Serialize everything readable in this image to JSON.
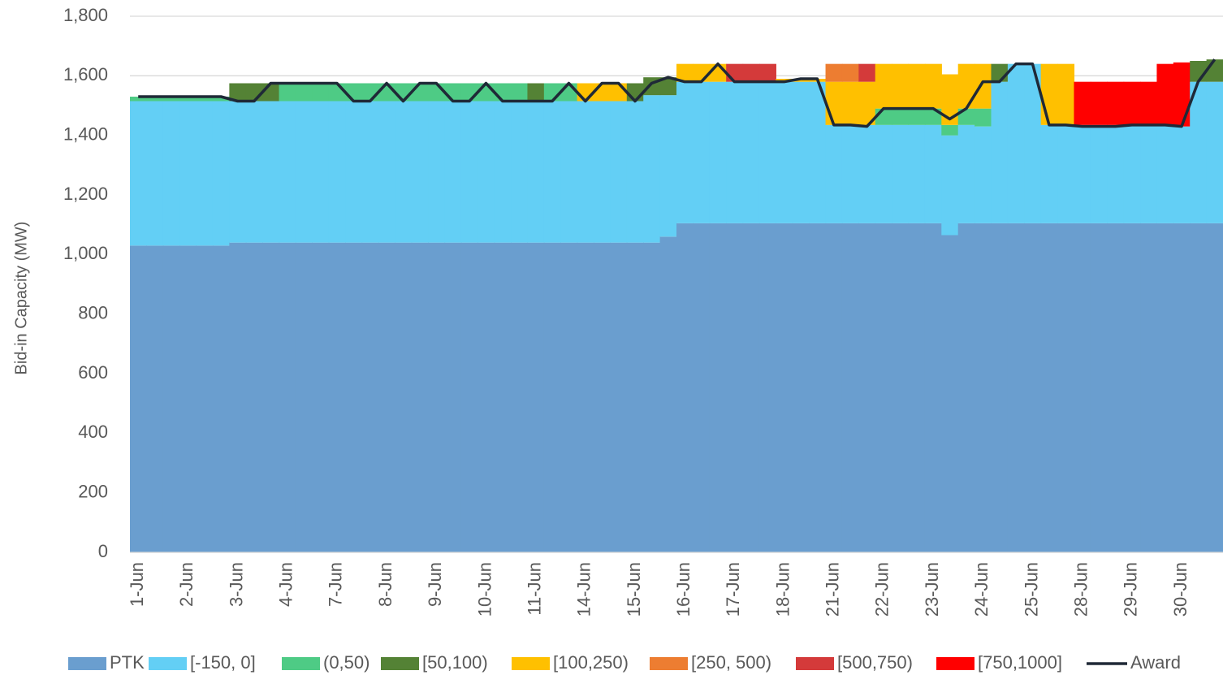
{
  "chart_data": {
    "type": "bar",
    "stacked": true,
    "y_label": "Bid-in Capacity (MW)",
    "categories": [
      "1-Jun",
      null,
      null,
      "2-Jun",
      null,
      null,
      "3-Jun",
      null,
      null,
      "4-Jun",
      null,
      null,
      "7-Jun",
      null,
      null,
      "8-Jun",
      null,
      null,
      "9-Jun",
      null,
      null,
      "10-Jun",
      null,
      null,
      "11-Jun",
      null,
      null,
      "14-Jun",
      null,
      null,
      "15-Jun",
      null,
      null,
      "16-Jun",
      null,
      null,
      "17-Jun",
      null,
      null,
      "18-Jun",
      null,
      null,
      "21-Jun",
      null,
      null,
      "22-Jun",
      null,
      null,
      "23-Jun",
      null,
      null,
      "24-Jun",
      null,
      null,
      "25-Jun",
      null,
      null,
      "28-Jun",
      null,
      null,
      "29-Jun",
      null,
      null,
      "30-Jun",
      null,
      null
    ],
    "ylim": [
      0,
      1800
    ],
    "yticks": [
      0,
      200,
      400,
      600,
      800,
      {
        "value": 1000,
        "label": "1,000"
      },
      {
        "value": 1200,
        "label": "1,200"
      },
      {
        "value": 1400,
        "label": "1,400"
      },
      {
        "value": 1600,
        "label": "1,600"
      },
      {
        "value": 1800,
        "label": "1,800"
      }
    ],
    "grid": true,
    "legend": "bottom",
    "series": [
      {
        "name": "PTK",
        "color": "#6a9ecf",
        "values": [
          1030,
          1030,
          1030,
          1030,
          1030,
          1030,
          1040,
          1040,
          1040,
          1040,
          1040,
          1040,
          1040,
          1040,
          1040,
          1040,
          1040,
          1040,
          1040,
          1040,
          1040,
          1040,
          1040,
          1040,
          1040,
          1040,
          1040,
          1040,
          1040,
          1040,
          1040,
          1040,
          1060,
          1105,
          1105,
          1105,
          1105,
          1105,
          1105,
          1105,
          1105,
          1105,
          1105,
          1105,
          1105,
          1105,
          1105,
          1105,
          1105,
          1065,
          1105,
          1105,
          1105,
          1105,
          1105,
          1105,
          1105,
          1105,
          1105,
          1105,
          1105,
          1105,
          1105,
          1105,
          1105,
          1105
        ]
      },
      {
        "name": "[-150, 0]",
        "color": "#63cff5",
        "values": [
          485,
          485,
          485,
          485,
          485,
          485,
          475,
          475,
          475,
          475,
          475,
          475,
          475,
          475,
          475,
          475,
          475,
          475,
          475,
          475,
          475,
          475,
          475,
          475,
          475,
          475,
          475,
          475,
          475,
          475,
          475,
          495,
          475,
          475,
          475,
          475,
          475,
          475,
          475,
          475,
          475,
          475,
          330,
          330,
          330,
          330,
          330,
          330,
          330,
          335,
          330,
          325,
          475,
          535,
          535,
          330,
          330,
          330,
          330,
          330,
          330,
          330,
          330,
          325,
          475,
          475
        ]
      },
      {
        "name": "(0,50)",
        "color": "#4ecb85",
        "values": [
          15,
          15,
          15,
          15,
          15,
          15,
          0,
          0,
          0,
          60,
          60,
          60,
          60,
          60,
          60,
          60,
          60,
          60,
          60,
          60,
          60,
          60,
          60,
          60,
          0,
          60,
          60,
          0,
          0,
          0,
          0,
          0,
          0,
          0,
          0,
          0,
          0,
          0,
          0,
          0,
          0,
          0,
          0,
          0,
          0,
          55,
          55,
          55,
          55,
          35,
          55,
          60,
          0,
          0,
          0,
          0,
          0,
          0,
          0,
          0,
          0,
          0,
          0,
          0,
          0,
          0
        ]
      },
      {
        "name": "[50,100)",
        "color": "#548235",
        "values": [
          0,
          0,
          0,
          0,
          0,
          0,
          60,
          60,
          60,
          0,
          0,
          0,
          0,
          0,
          0,
          0,
          0,
          0,
          0,
          0,
          0,
          0,
          0,
          0,
          60,
          0,
          0,
          0,
          0,
          0,
          60,
          60,
          60,
          0,
          0,
          0,
          0,
          0,
          0,
          0,
          0,
          0,
          0,
          0,
          0,
          0,
          0,
          0,
          0,
          0,
          0,
          0,
          60,
          0,
          0,
          0,
          0,
          0,
          0,
          0,
          0,
          0,
          0,
          0,
          70,
          75
        ]
      },
      {
        "name": "[100,250)",
        "color": "#ffc000",
        "values": [
          0,
          0,
          0,
          0,
          0,
          0,
          0,
          0,
          0,
          0,
          0,
          0,
          0,
          0,
          0,
          0,
          0,
          0,
          0,
          0,
          0,
          0,
          0,
          0,
          0,
          0,
          0,
          60,
          60,
          60,
          0,
          0,
          0,
          60,
          60,
          60,
          0,
          0,
          0,
          10,
          10,
          10,
          145,
          145,
          145,
          150,
          150,
          150,
          150,
          170,
          150,
          150,
          0,
          0,
          0,
          205,
          205,
          0,
          0,
          0,
          0,
          0,
          0,
          0,
          0,
          0
        ]
      },
      {
        "name": "[250, 500)",
        "color": "#ed7d31",
        "values": [
          0,
          0,
          0,
          0,
          0,
          0,
          0,
          0,
          0,
          0,
          0,
          0,
          0,
          0,
          0,
          0,
          0,
          0,
          0,
          0,
          0,
          0,
          0,
          0,
          0,
          0,
          0,
          0,
          0,
          0,
          0,
          0,
          0,
          0,
          0,
          0,
          0,
          0,
          0,
          0,
          0,
          0,
          60,
          60,
          0,
          0,
          0,
          0,
          0,
          0,
          0,
          0,
          0,
          0,
          0,
          0,
          0,
          0,
          0,
          0,
          0,
          0,
          0,
          0,
          0,
          0
        ]
      },
      {
        "name": "[500,750)",
        "color": "#d43a3a",
        "values": [
          0,
          0,
          0,
          0,
          0,
          0,
          0,
          0,
          0,
          0,
          0,
          0,
          0,
          0,
          0,
          0,
          0,
          0,
          0,
          0,
          0,
          0,
          0,
          0,
          0,
          0,
          0,
          0,
          0,
          0,
          0,
          0,
          0,
          0,
          0,
          0,
          60,
          60,
          60,
          0,
          0,
          0,
          0,
          0,
          60,
          0,
          0,
          0,
          0,
          0,
          0,
          0,
          0,
          0,
          0,
          0,
          0,
          0,
          0,
          0,
          0,
          0,
          0,
          0,
          0,
          0
        ]
      },
      {
        "name": "[750,1000]",
        "color": "#ff0000",
        "values": [
          0,
          0,
          0,
          0,
          0,
          0,
          0,
          0,
          0,
          0,
          0,
          0,
          0,
          0,
          0,
          0,
          0,
          0,
          0,
          0,
          0,
          0,
          0,
          0,
          0,
          0,
          0,
          0,
          0,
          0,
          0,
          0,
          0,
          0,
          0,
          0,
          0,
          0,
          0,
          0,
          0,
          0,
          0,
          0,
          0,
          0,
          0,
          0,
          0,
          0,
          0,
          0,
          0,
          0,
          0,
          0,
          0,
          145,
          145,
          145,
          145,
          145,
          205,
          215,
          0,
          0
        ]
      },
      {
        "name": "Award",
        "type": "line",
        "color": "#1f2937",
        "values": [
          1530,
          1530,
          1530,
          1530,
          1530,
          1530,
          1515,
          1515,
          1575,
          1575,
          1575,
          1575,
          1575,
          1515,
          1515,
          1575,
          1515,
          1575,
          1575,
          1515,
          1515,
          1575,
          1515,
          1515,
          1515,
          1515,
          1575,
          1515,
          1575,
          1575,
          1515,
          1575,
          1595,
          1580,
          1580,
          1640,
          1580,
          1580,
          1580,
          1580,
          1590,
          1590,
          1435,
          1435,
          1430,
          1490,
          1490,
          1490,
          1490,
          1455,
          1490,
          1580,
          1580,
          1640,
          1640,
          1435,
          1435,
          1430,
          1430,
          1430,
          1435,
          1435,
          1435,
          1430,
          1580,
          1655
        ]
      }
    ]
  }
}
